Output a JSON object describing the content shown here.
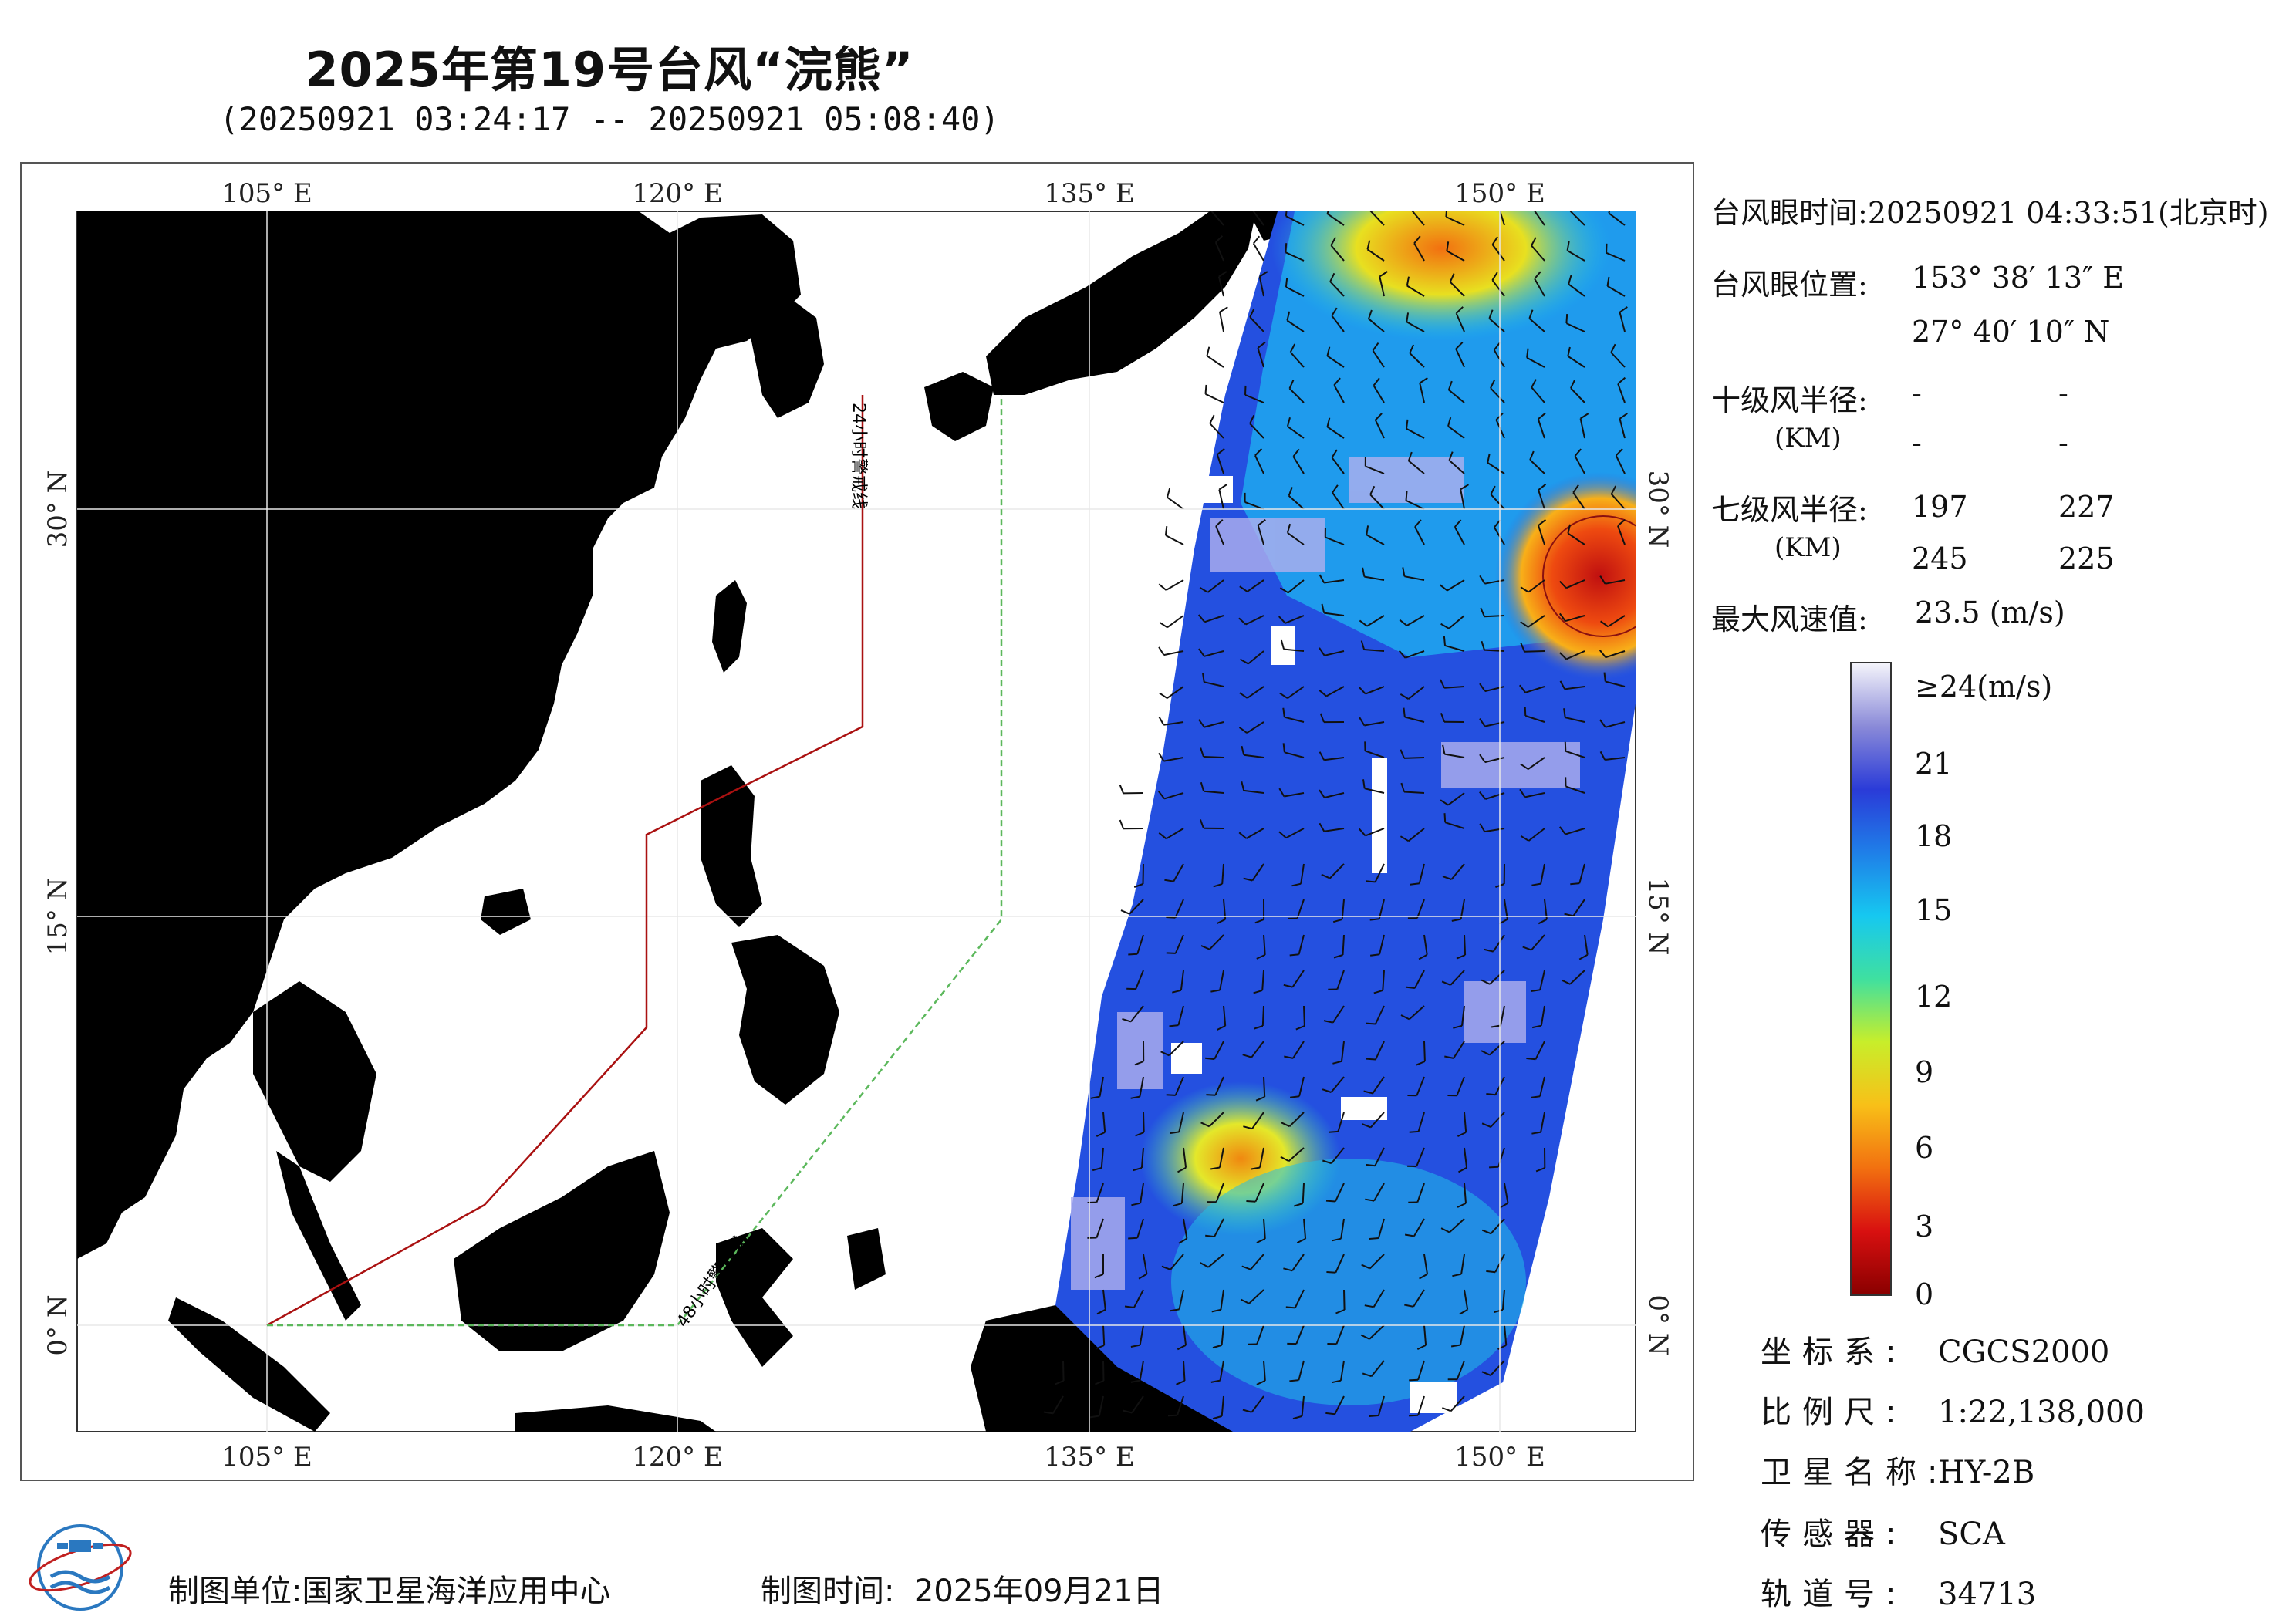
{
  "title": "2025年第19号台风“浣熊”",
  "subtitle": "(20250921 03:24:17 -- 20250921 05:08:40)",
  "map": {
    "lon_labels": [
      "105° E",
      "120° E",
      "135° E",
      "150° E"
    ],
    "lat_labels": [
      "30° N",
      "15° N",
      "0° N"
    ],
    "warning_line_24h": "24小时警戒线",
    "warning_line_48h": "48小时警戒线",
    "colors": {
      "land": "#d3d3d3",
      "ocean": "#ffffff",
      "line_24h": "#aa1111",
      "line_48h": "#5cb85c"
    }
  },
  "info": {
    "eye_time_label": "台风眼时间:",
    "eye_time_value": "20250921 04:33:51(北京时)",
    "eye_pos_label": "台风眼位置:",
    "eye_lon": "153° 38′ 13″ E",
    "eye_lat": "27° 40′ 10″ N",
    "r10_label": "十级风半径:",
    "r10_unit": "(KM)",
    "r10_values": [
      "-",
      "-",
      "-",
      "-"
    ],
    "r7_label": "七级风半径:",
    "r7_unit": "(KM)",
    "r7_values": [
      "197",
      "227",
      "245",
      "225"
    ],
    "max_wind_label": "最大风速值:",
    "max_wind_value": "23.5  (m/s)"
  },
  "colorbar": {
    "top_label": "≥24(m/s)",
    "ticks": [
      "21",
      "18",
      "15",
      "12",
      "9",
      "6",
      "3",
      "0"
    ],
    "stops": [
      "#f4f4fb",
      "#8a8ad8",
      "#2a3bd8",
      "#1f7fe8",
      "#16c8f0",
      "#3fe0a0",
      "#c8ee2a",
      "#f8c018",
      "#f27010",
      "#d81010",
      "#8a0000"
    ]
  },
  "meta": [
    {
      "key": "坐标系:",
      "value": "CGCS2000"
    },
    {
      "key": "比例尺:",
      "value": "1:22,138,000"
    },
    {
      "key": "卫星名称:",
      "value": "HY-2B"
    },
    {
      "key": "传感器:",
      "value": "SCA"
    },
    {
      "key": "轨道号:",
      "value": "34713"
    }
  ],
  "footer": {
    "unit_label": "制图单位:",
    "unit_value": "国家卫星海洋应用中心",
    "time_label": "制图时间:",
    "time_value": "2025年09月21日"
  }
}
